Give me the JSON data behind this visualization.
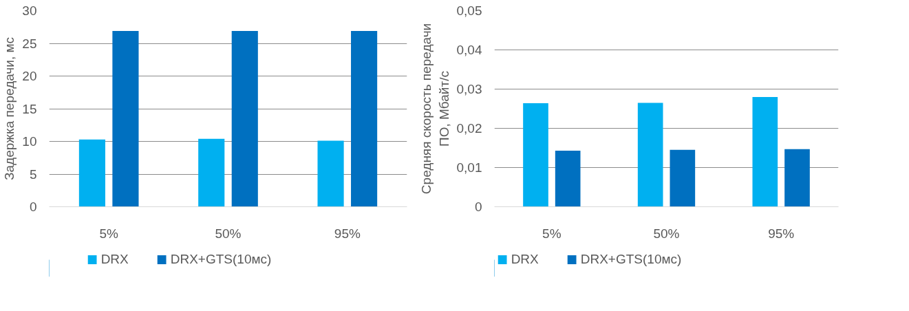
{
  "chart_data": [
    {
      "type": "bar",
      "ylabel": "Задержка передачи, мс",
      "categories": [
        "5%",
        "50%",
        "95%"
      ],
      "series": [
        {
          "name": "DRX",
          "color": "#00b0f0",
          "values": [
            10.3,
            10.4,
            10.1
          ]
        },
        {
          "name": "DRX+GTS(10мс)",
          "color": "#0070c0",
          "values": [
            26.9,
            26.9,
            26.9
          ]
        }
      ],
      "ylim": [
        0,
        30
      ],
      "yticks": [
        0,
        5,
        10,
        15,
        20,
        25,
        30
      ],
      "grid": "y",
      "legend": "bottom"
    },
    {
      "type": "bar",
      "ylabel": "Средняя скорость передачи ПО, Мбайт/с",
      "categories": [
        "5%",
        "50%",
        "95%"
      ],
      "series": [
        {
          "name": "DRX",
          "color": "#00b0f0",
          "values": [
            0.0264,
            0.0265,
            0.028
          ]
        },
        {
          "name": "DRX+GTS(10мс)",
          "color": "#0070c0",
          "values": [
            0.0143,
            0.0145,
            0.0147
          ]
        }
      ],
      "ylim": [
        0,
        0.05
      ],
      "yticks": [
        0,
        {
          "value": 0.01,
          "label": "0,01"
        },
        {
          "value": 0.02,
          "label": "0,02"
        },
        {
          "value": 0.03,
          "label": "0,03"
        },
        {
          "value": 0.04,
          "label": "0,04"
        },
        {
          "value": 0.05,
          "label": "0,05"
        }
      ],
      "grid": "y",
      "legend": "bottom"
    }
  ]
}
